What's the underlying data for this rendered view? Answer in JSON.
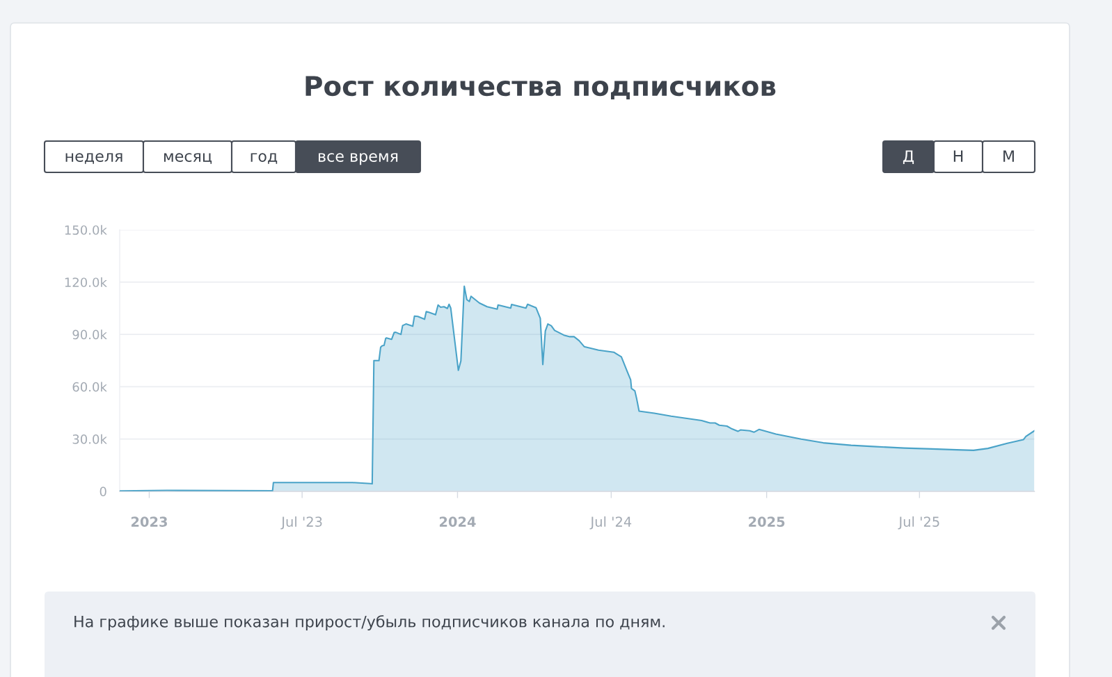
{
  "chart_data": {
    "type": "area",
    "title": "Рост количества подписчиков",
    "x": [
      "2022-11-27",
      "2023-01-22",
      "2023-05-27",
      "2023-05-28",
      "2023-08-30",
      "2023-09-20",
      "2023-09-22",
      "2023-09-24",
      "2023-09-30",
      "2023-10-02",
      "2023-10-04",
      "2023-10-06",
      "2023-10-08",
      "2023-10-09",
      "2023-10-15",
      "2023-10-18",
      "2023-10-20",
      "2023-10-26",
      "2023-10-28",
      "2023-11-01",
      "2023-11-09",
      "2023-11-11",
      "2023-11-15",
      "2023-11-23",
      "2023-11-25",
      "2023-11-28",
      "2023-12-06",
      "2023-12-09",
      "2023-12-12",
      "2023-12-16",
      "2023-12-20",
      "2023-12-22",
      "2023-12-24",
      "2024-01-02",
      "2024-01-05",
      "2024-01-09",
      "2024-01-12",
      "2024-01-15",
      "2024-01-17",
      "2024-01-27",
      "2024-02-05",
      "2024-02-17",
      "2024-02-18",
      "2024-03-04",
      "2024-03-05",
      "2024-03-22",
      "2024-03-24",
      "2024-04-03",
      "2024-04-08",
      "2024-04-11",
      "2024-04-14",
      "2024-04-17",
      "2024-04-21",
      "2024-04-25",
      "2024-05-06",
      "2024-05-13",
      "2024-05-18",
      "2024-05-24",
      "2024-05-30",
      "2024-06-16",
      "2024-07-04",
      "2024-07-13",
      "2024-07-20",
      "2024-07-24",
      "2024-07-25",
      "2024-07-29",
      "2024-07-31",
      "2024-08-03",
      "2024-08-21",
      "2024-09-10",
      "2024-09-23",
      "2024-10-16",
      "2024-10-26",
      "2024-11-01",
      "2024-11-06",
      "2024-11-15",
      "2024-11-21",
      "2024-11-28",
      "2024-12-01",
      "2024-12-12",
      "2024-12-17",
      "2024-12-23",
      "2024-12-29",
      "2025-01-12",
      "2025-02-11",
      "2025-03-09",
      "2025-04-11",
      "2025-05-11",
      "2025-06-13",
      "2025-07-16",
      "2025-08-14",
      "2025-09-03",
      "2025-09-20",
      "2025-10-13",
      "2025-11-01",
      "2025-11-04",
      "2025-11-14"
    ],
    "series": [
      {
        "color": "#4aa3c8",
        "values": [
          200,
          500,
          300,
          5000,
          5000,
          4400,
          4300,
          75000,
          75000,
          82700,
          83600,
          83700,
          87800,
          88000,
          87200,
          91100,
          91200,
          90000,
          95100,
          96000,
          94700,
          100500,
          100300,
          98700,
          103100,
          102700,
          101300,
          106900,
          105600,
          105900,
          104900,
          107300,
          105100,
          69400,
          74800,
          117700,
          110000,
          108900,
          111900,
          108000,
          105900,
          104500,
          106900,
          105100,
          107200,
          105100,
          107300,
          105300,
          99300,
          72700,
          92000,
          96000,
          95000,
          92300,
          89600,
          88700,
          88700,
          86400,
          83000,
          81000,
          79800,
          77100,
          68700,
          64000,
          59000,
          57600,
          53400,
          46000,
          44800,
          43100,
          42200,
          40600,
          39200,
          39200,
          37900,
          37400,
          35800,
          34400,
          35200,
          34700,
          33900,
          35500,
          34700,
          32800,
          29900,
          27800,
          26400,
          25600,
          24800,
          24300,
          23800,
          23500,
          24600,
          27500,
          29600,
          31500,
          34700
        ]
      }
    ],
    "xlim": [
      "2022-11-27",
      "2025-11-14"
    ],
    "ylim": [
      0,
      150000
    ],
    "xticks": [
      {
        "value": "2023-01-01",
        "label": "2023"
      },
      {
        "value": "2023-07-01",
        "label": "Jul '23"
      },
      {
        "value": "2024-01-01",
        "label": "2024"
      },
      {
        "value": "2024-07-01",
        "label": "Jul '24"
      },
      {
        "value": "2025-01-01",
        "label": "2025"
      },
      {
        "value": "2025-07-01",
        "label": "Jul '25"
      }
    ],
    "yticks": [
      0,
      {
        "value": 30000,
        "label": "30.0k"
      },
      {
        "value": 60000,
        "label": "60.0k"
      },
      {
        "value": 90000,
        "label": "90.0k"
      },
      {
        "value": 120000,
        "label": "120.0k"
      },
      {
        "value": 150000,
        "label": "150.0k"
      }
    ],
    "grid": "y",
    "marker": "none",
    "line_style": "solid",
    "annotations": [
      "неделя",
      "месяц",
      "год",
      "все время",
      "Д",
      "Н",
      "М",
      "На графике выше показан прирост/убыль подписчиков канала по дням."
    ]
  }
}
